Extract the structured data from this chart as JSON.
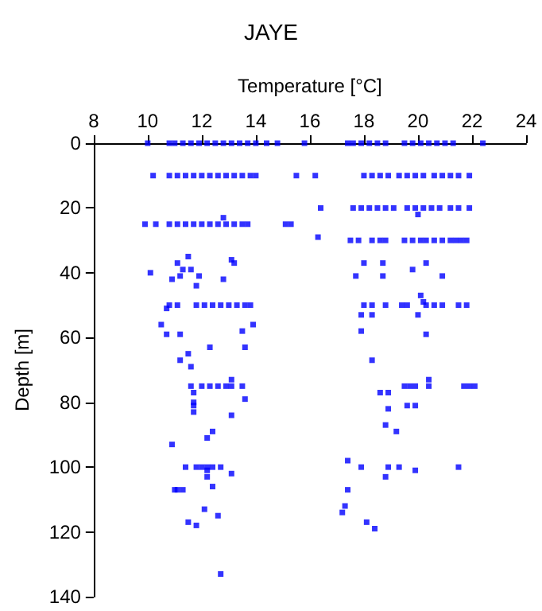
{
  "chart_data": {
    "type": "scatter",
    "title": "JAYE",
    "xlabel": "Temperature [°C]",
    "ylabel": "Depth [m]",
    "xlim": [
      8,
      24
    ],
    "xticks": [
      8,
      10,
      12,
      14,
      16,
      18,
      20,
      22,
      24
    ],
    "ylim": [
      140,
      0
    ],
    "yticks": [
      0,
      20,
      40,
      60,
      80,
      100,
      120,
      140
    ],
    "grid": false,
    "marker": "square",
    "series": [
      {
        "color": "#0000ff",
        "x": [
          10.0,
          10.8,
          11.0,
          11.3,
          11.6,
          11.9,
          12.2,
          12.5,
          12.8,
          13.1,
          13.4,
          13.7,
          14.0,
          14.4,
          14.8,
          15.8,
          17.4,
          17.6,
          17.9,
          18.2,
          18.5,
          18.8,
          19.5,
          19.8,
          20.1,
          20.4,
          20.7,
          21.0,
          21.3,
          22.4,
          10.2,
          10.8,
          11.1,
          11.4,
          11.7,
          12.0,
          12.3,
          12.6,
          12.9,
          13.2,
          13.5,
          13.8,
          14.0,
          15.5,
          16.2,
          18.0,
          18.3,
          18.6,
          18.9,
          19.3,
          19.6,
          19.9,
          20.2,
          20.6,
          20.9,
          21.2,
          21.5,
          21.9,
          16.4,
          17.6,
          17.9,
          18.2,
          18.5,
          18.8,
          19.1,
          19.6,
          19.9,
          20.2,
          20.5,
          20.8,
          21.2,
          21.5,
          21.9,
          20.0,
          12.8,
          9.9,
          10.3,
          10.8,
          11.1,
          11.4,
          11.7,
          12.0,
          12.3,
          12.6,
          12.9,
          13.2,
          13.5,
          13.7,
          15.1,
          15.3,
          16.3,
          17.5,
          17.8,
          18.3,
          18.6,
          18.8,
          19.5,
          19.8,
          20.1,
          20.3,
          20.6,
          20.9,
          21.2,
          21.4,
          21.6,
          21.8,
          11.5,
          11.1,
          13.1,
          13.2,
          10.1,
          11.3,
          11.6,
          11.2,
          11.9,
          10.9,
          12.8,
          11.8,
          18.0,
          18.7,
          20.3,
          17.7,
          18.7,
          19.8,
          20.9,
          20.1,
          20.2,
          10.8,
          11.1,
          11.8,
          12.1,
          12.4,
          12.7,
          13.0,
          13.3,
          13.6,
          13.8,
          18.0,
          18.3,
          18.8,
          19.4,
          19.6,
          20.3,
          20.6,
          20.9,
          21.5,
          21.8,
          10.7,
          17.9,
          18.3,
          20.0,
          10.5,
          13.9,
          13.5,
          17.9,
          10.7,
          11.2,
          20.3,
          12.3,
          13.6,
          11.5,
          11.2,
          18.3,
          11.6,
          13.1,
          20.4,
          11.6,
          12.0,
          12.3,
          12.6,
          12.9,
          13.1,
          13.5,
          19.5,
          19.7,
          19.9,
          20.4,
          21.7,
          21.9,
          22.1,
          11.7,
          18.6,
          18.9,
          13.6,
          11.7,
          11.7,
          11.7,
          19.6,
          19.9,
          18.9,
          13.1,
          18.8,
          12.4,
          19.2,
          12.2,
          10.9,
          17.4,
          11.4,
          11.8,
          12.0,
          12.2,
          12.4,
          12.7,
          17.9,
          18.9,
          19.3,
          21.5,
          12.2,
          19.9,
          13.1,
          12.2,
          18.8,
          12.4,
          11.0,
          11.1,
          11.3,
          17.4,
          17.3,
          12.1,
          17.2,
          12.6,
          11.5,
          18.1,
          11.8,
          18.4,
          12.7
        ],
        "values": [
          0,
          0,
          0,
          0,
          0,
          0,
          0,
          0,
          0,
          0,
          0,
          0,
          0,
          0,
          0,
          0,
          0,
          0,
          0,
          0,
          0,
          0,
          0,
          0,
          0,
          0,
          0,
          0,
          0,
          0,
          10,
          10,
          10,
          10,
          10,
          10,
          10,
          10,
          10,
          10,
          10,
          10,
          10,
          10,
          10,
          10,
          10,
          10,
          10,
          10,
          10,
          10,
          10,
          10,
          10,
          10,
          10,
          10,
          20,
          20,
          20,
          20,
          20,
          20,
          20,
          20,
          20,
          20,
          20,
          20,
          20,
          20,
          20,
          22,
          23,
          25,
          25,
          25,
          25,
          25,
          25,
          25,
          25,
          25,
          25,
          25,
          25,
          25,
          25,
          25,
          29,
          30,
          30,
          30,
          30,
          30,
          30,
          30,
          30,
          30,
          30,
          30,
          30,
          30,
          30,
          30,
          35,
          37,
          36,
          37,
          40,
          39,
          39,
          41,
          41,
          42,
          42,
          44,
          37,
          37,
          37,
          41,
          41,
          39,
          41,
          47,
          49,
          50,
          50,
          50,
          50,
          50,
          50,
          50,
          50,
          50,
          50,
          50,
          50,
          50,
          50,
          50,
          50,
          50,
          50,
          50,
          50,
          51,
          53,
          53,
          53,
          56,
          56,
          58,
          58,
          59,
          59,
          59,
          63,
          63,
          65,
          67,
          67,
          69,
          73,
          73,
          75,
          75,
          75,
          75,
          75,
          75,
          75,
          75,
          75,
          75,
          75,
          75,
          75,
          75,
          77,
          77,
          77,
          79,
          80,
          81,
          83,
          81,
          81,
          82,
          84,
          87,
          89,
          89,
          91,
          93,
          98,
          100,
          100,
          100,
          100,
          100,
          100,
          100,
          100,
          100,
          100,
          101,
          101,
          102,
          103,
          103,
          106,
          107,
          107,
          107,
          107,
          112,
          113,
          114,
          115,
          117,
          117,
          118,
          119,
          133
        ]
      }
    ]
  }
}
